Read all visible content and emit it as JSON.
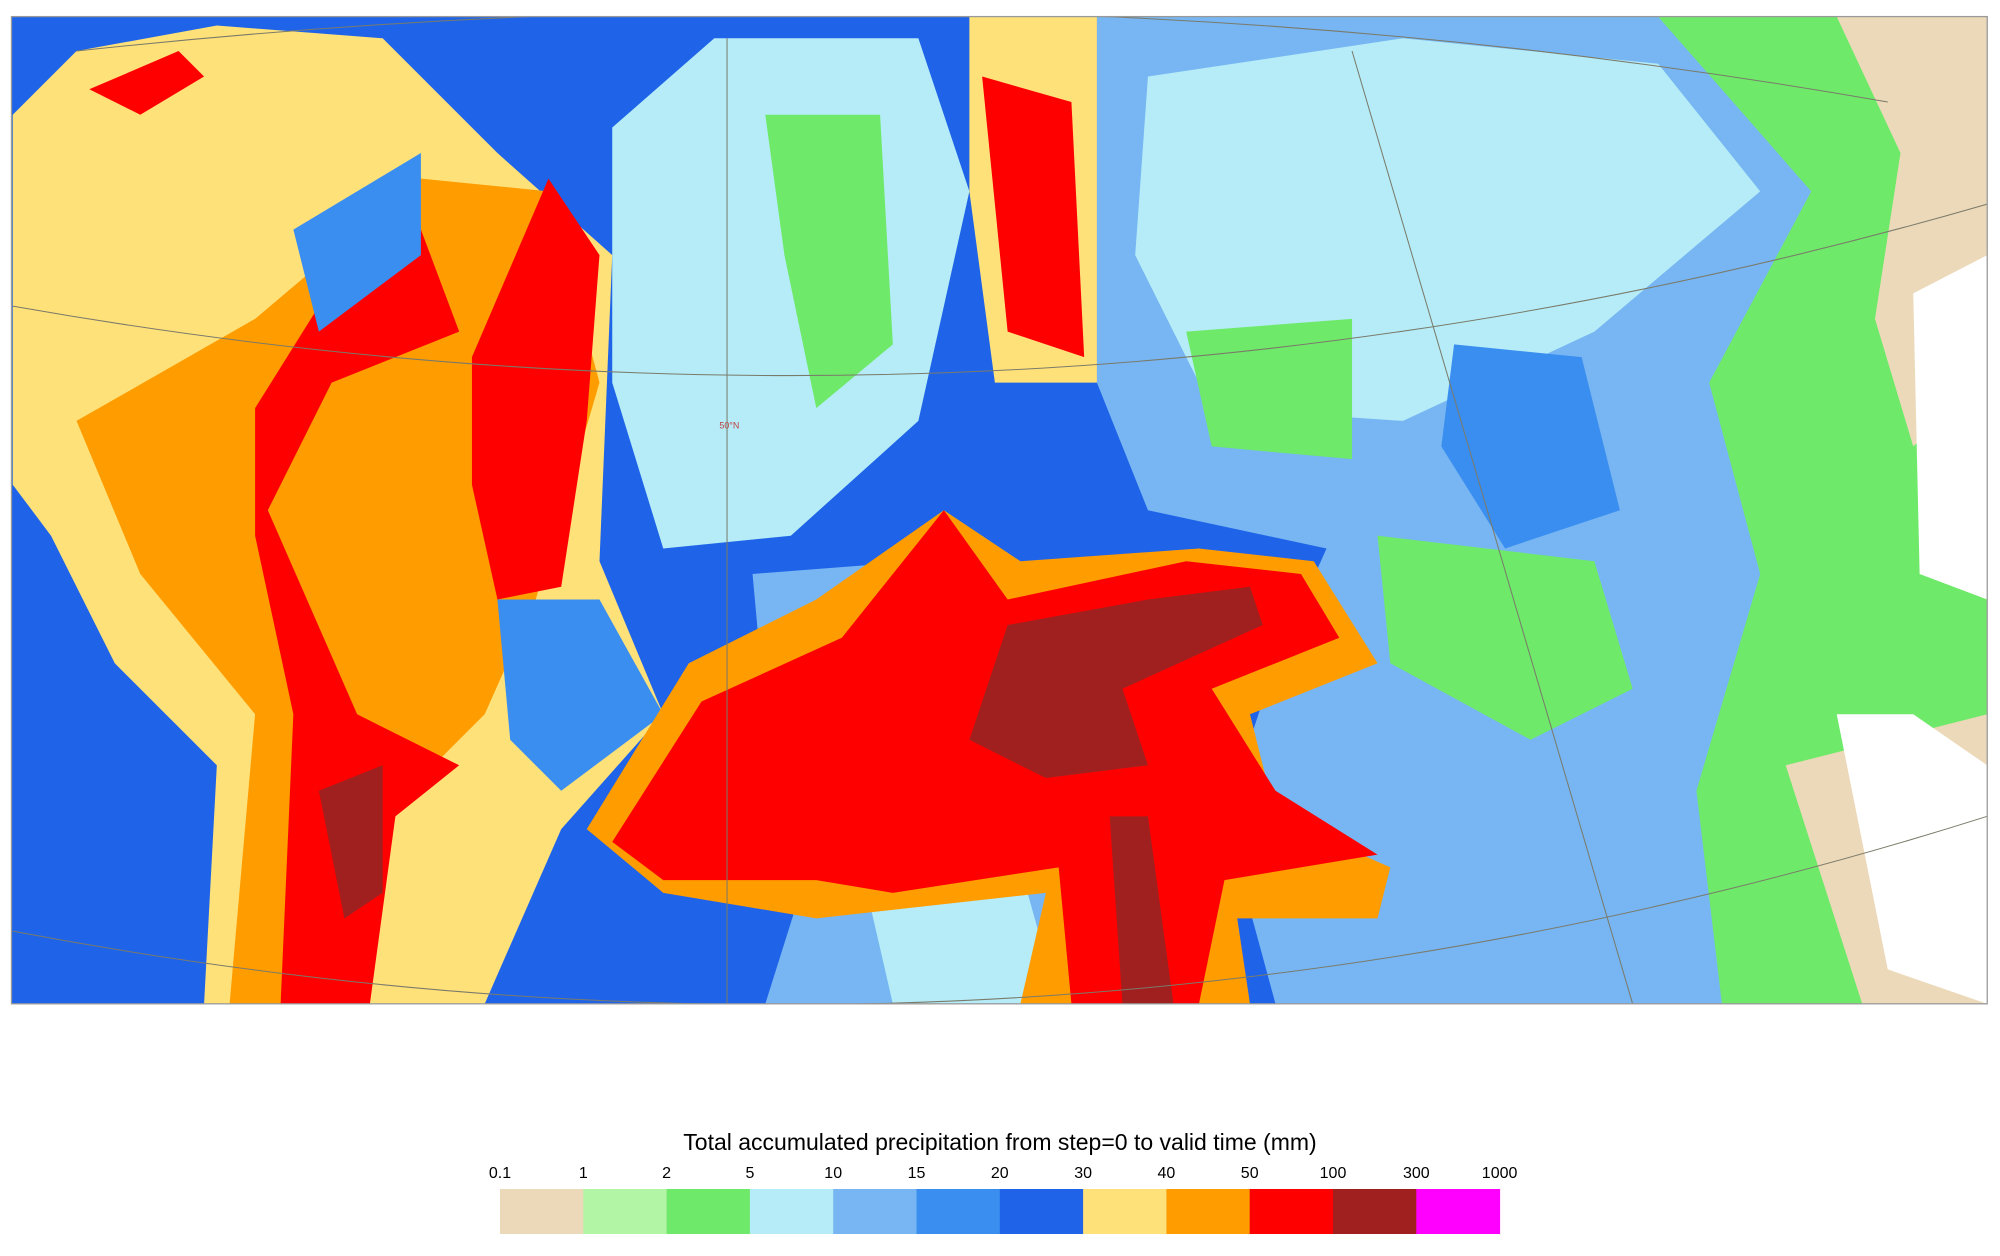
{
  "map": {
    "latitude_label": "50°N"
  },
  "legend": {
    "title": "Total accumulated precipitation from step=0 to valid time (mm)",
    "levels": [
      0.1,
      1,
      2,
      5,
      10,
      15,
      20,
      30,
      40,
      50,
      100,
      300,
      1000
    ],
    "colors": [
      "#ecd9b9",
      "#b2f5a5",
      "#6fe96a",
      "#b5ecf7",
      "#77b6f2",
      "#3a8ef0",
      "#1f64e8",
      "#ffe17a",
      "#ff9c00",
      "#ff0000",
      "#a02020",
      "#ff00ff"
    ]
  }
}
